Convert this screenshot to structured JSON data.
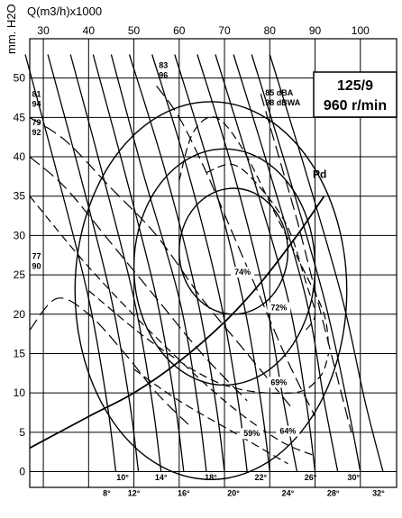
{
  "chart_data": {
    "type": "line",
    "title": "125/9",
    "speed": "960 r/min",
    "xlabel": "Q(m3/h)x1000",
    "ylabel": "mm. H2O",
    "xlim": [
      27,
      108
    ],
    "ylim": [
      -2,
      55
    ],
    "x_ticks": [
      30,
      40,
      50,
      60,
      70,
      80,
      90,
      100
    ],
    "y_ticks": [
      0,
      5,
      10,
      15,
      20,
      25,
      30,
      35,
      40,
      45,
      50
    ],
    "grid": true,
    "blade_angle_curves": [
      {
        "name": "8°",
        "points": [
          [
            26,
            53
          ],
          [
            33,
            38
          ],
          [
            40,
            22
          ],
          [
            44,
            9
          ],
          [
            46,
            0
          ]
        ]
      },
      {
        "name": "10°",
        "points": [
          [
            31,
            53
          ],
          [
            38,
            38
          ],
          [
            45,
            22
          ],
          [
            49,
            9
          ],
          [
            51,
            0
          ]
        ]
      },
      {
        "name": "12°",
        "points": [
          [
            36,
            53
          ],
          [
            43,
            38
          ],
          [
            50,
            22
          ],
          [
            54,
            9
          ],
          [
            56,
            0
          ]
        ]
      },
      {
        "name": "14°",
        "points": [
          [
            41,
            53
          ],
          [
            48,
            38
          ],
          [
            55,
            22
          ],
          [
            59,
            9
          ],
          [
            61,
            0
          ]
        ]
      },
      {
        "name": "16°",
        "points": [
          [
            45,
            53
          ],
          [
            52,
            38
          ],
          [
            60,
            22
          ],
          [
            64,
            9
          ],
          [
            66,
            0
          ]
        ]
      },
      {
        "name": "18°",
        "points": [
          [
            49,
            53
          ],
          [
            57,
            38
          ],
          [
            64,
            22
          ],
          [
            68,
            9
          ],
          [
            70,
            0
          ]
        ]
      },
      {
        "name": "20°",
        "points": [
          [
            54,
            53
          ],
          [
            62,
            38
          ],
          [
            69,
            22
          ],
          [
            73,
            9
          ],
          [
            75,
            0
          ]
        ]
      },
      {
        "name": "22°",
        "points": [
          [
            59,
            53
          ],
          [
            67,
            38
          ],
          [
            74,
            22
          ],
          [
            78,
            9
          ],
          [
            80,
            0
          ]
        ]
      },
      {
        "name": "24°",
        "points": [
          [
            64,
            53
          ],
          [
            72,
            38
          ],
          [
            79,
            22
          ],
          [
            83,
            9
          ],
          [
            86,
            0
          ]
        ]
      },
      {
        "name": "26°",
        "points": [
          [
            68,
            53
          ],
          [
            76,
            38
          ],
          [
            84,
            22
          ],
          [
            88,
            9
          ],
          [
            90,
            0
          ]
        ]
      },
      {
        "name": "28°",
        "points": [
          [
            72,
            53
          ],
          [
            80,
            38
          ],
          [
            88,
            22
          ],
          [
            92,
            9
          ],
          [
            95,
            0
          ]
        ]
      },
      {
        "name": "30°",
        "points": [
          [
            76,
            53
          ],
          [
            84,
            38
          ],
          [
            92,
            22
          ],
          [
            97,
            9
          ],
          [
            100,
            0
          ]
        ]
      },
      {
        "name": "32°",
        "points": [
          [
            80,
            53
          ],
          [
            88,
            38
          ],
          [
            96,
            22
          ],
          [
            101,
            9
          ],
          [
            105,
            0
          ]
        ]
      }
    ],
    "blade_angle_labels": [
      {
        "text": "8°",
        "x": 44,
        "y": -3.1
      },
      {
        "text": "10°",
        "x": 47.5,
        "y": -1.1
      },
      {
        "text": "12°",
        "x": 50,
        "y": -3.1
      },
      {
        "text": "14°",
        "x": 56,
        "y": -1.1
      },
      {
        "text": "16°",
        "x": 61,
        "y": -3.1
      },
      {
        "text": "18°",
        "x": 67,
        "y": -1.1
      },
      {
        "text": "20°",
        "x": 72,
        "y": -3.1
      },
      {
        "text": "22°",
        "x": 78,
        "y": -1.1
      },
      {
        "text": "24°",
        "x": 84,
        "y": -3.1
      },
      {
        "text": "26°",
        "x": 89,
        "y": -1.1
      },
      {
        "text": "28°",
        "x": 94,
        "y": -3.1
      },
      {
        "text": "30°",
        "x": 98.5,
        "y": -1.1
      },
      {
        "text": "32°",
        "x": 104,
        "y": -3.1
      }
    ],
    "efficiency_curves": [
      {
        "name": "59%",
        "points": [
          [
            50,
            13
          ],
          [
            60,
            9
          ],
          [
            72,
            5
          ],
          [
            84,
            1
          ]
        ]
      },
      {
        "name": "64%",
        "points": [
          [
            27,
            35
          ],
          [
            40,
            26
          ],
          [
            55,
            17
          ],
          [
            70,
            9
          ],
          [
            82,
            4
          ],
          [
            90,
            2
          ]
        ]
      },
      {
        "name": "69%",
        "points": [
          [
            40,
            23
          ],
          [
            55,
            16
          ],
          [
            70,
            11
          ],
          [
            85,
            10
          ],
          [
            91,
            12
          ],
          [
            93,
            15
          ]
        ]
      },
      {
        "name": "72%",
        "points": [
          [
            60,
            37
          ],
          [
            63,
            43
          ],
          [
            68,
            45
          ],
          [
            74,
            41
          ],
          [
            81,
            33
          ],
          [
            88,
            25
          ],
          [
            92,
            20
          ],
          [
            93,
            16
          ]
        ]
      },
      {
        "name": "74%",
        "points": [
          [
            66,
            38
          ],
          [
            72,
            39
          ],
          [
            78,
            36
          ],
          [
            84,
            31
          ],
          [
            88,
            24
          ],
          [
            90,
            20
          ],
          [
            88,
            18
          ]
        ]
      }
    ],
    "efficiency_labels": [
      {
        "text": "59%",
        "x": 76,
        "y": 4.5
      },
      {
        "text": "64%",
        "x": 84,
        "y": 4.8
      },
      {
        "text": "69%",
        "x": 82,
        "y": 11
      },
      {
        "text": "72%",
        "x": 82,
        "y": 20.5
      },
      {
        "text": "74%",
        "x": 74,
        "y": 25
      }
    ],
    "efficiency_loops": [
      {
        "name": "eff-loop-outer",
        "cx": 67,
        "cy": 23,
        "rx": 30,
        "ry": 24,
        "dashed": false
      },
      {
        "name": "eff-loop-mid",
        "cx": 70,
        "cy": 26,
        "rx": 20,
        "ry": 15,
        "dashed": false
      },
      {
        "name": "eff-loop-inner",
        "cx": 72,
        "cy": 28,
        "rx": 12,
        "ry": 8,
        "dashed": false
      }
    ],
    "noise_curves": [
      {
        "name": "77/90",
        "points": [
          [
            27,
            18
          ],
          [
            33,
            22
          ],
          [
            40,
            20
          ],
          [
            48,
            15
          ],
          [
            55,
            10
          ],
          [
            62,
            6
          ]
        ]
      },
      {
        "name": "79/92",
        "points": [
          [
            27,
            40
          ],
          [
            35,
            36
          ],
          [
            45,
            29
          ],
          [
            55,
            22
          ],
          [
            65,
            15
          ],
          [
            75,
            9
          ]
        ]
      },
      {
        "name": "81/94",
        "points": [
          [
            27,
            45
          ],
          [
            35,
            42
          ],
          [
            45,
            36
          ],
          [
            55,
            30
          ],
          [
            65,
            22
          ],
          [
            75,
            15
          ],
          [
            85,
            8
          ]
        ]
      },
      {
        "name": "83/96",
        "points": [
          [
            55,
            49
          ],
          [
            60,
            45
          ],
          [
            66,
            38
          ],
          [
            72,
            30
          ],
          [
            78,
            22
          ],
          [
            84,
            14
          ],
          [
            90,
            7
          ]
        ]
      },
      {
        "name": "85 dBA / 98 dBWA",
        "points": [
          [
            78,
            48
          ],
          [
            82,
            40
          ],
          [
            86,
            32
          ],
          [
            90,
            23
          ],
          [
            94,
            14
          ],
          [
            98,
            5
          ]
        ]
      }
    ],
    "noise_labels": [
      {
        "line1": "77",
        "line2": "90",
        "x": 27.5,
        "y": 27
      },
      {
        "line1": "79",
        "line2": "92",
        "x": 27.5,
        "y": 44
      },
      {
        "line1": "81",
        "line2": "94",
        "x": 27.5,
        "y": 47.6
      },
      {
        "line1": "83",
        "line2": "96",
        "x": 55.5,
        "y": 51.3
      },
      {
        "line1": "85 dBA",
        "line2": "98 dBWA",
        "x": 79,
        "y": 47.8
      }
    ],
    "pd_curve": {
      "name": "Pd",
      "points": [
        [
          27,
          3
        ],
        [
          40,
          7
        ],
        [
          50,
          10
        ],
        [
          60,
          14
        ],
        [
          70,
          19
        ],
        [
          78,
          24
        ],
        [
          86,
          30
        ],
        [
          92,
          35
        ]
      ]
    },
    "pd_label": {
      "text": "Pd",
      "x": 89.5,
      "y": 37.3
    }
  }
}
